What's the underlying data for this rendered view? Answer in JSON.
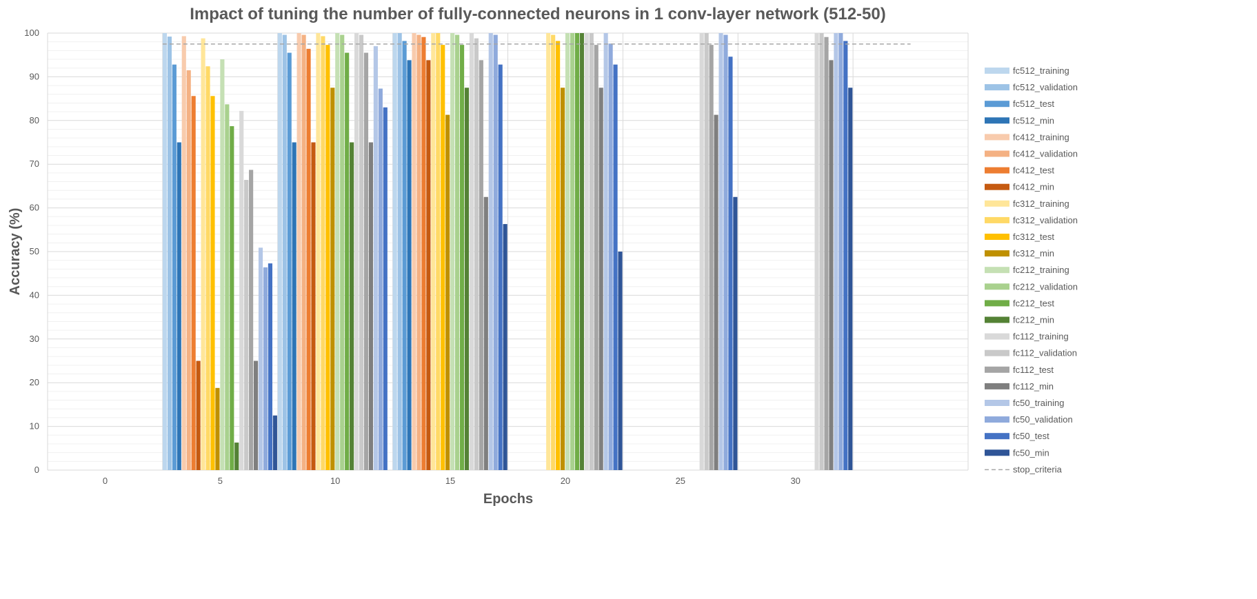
{
  "chart_data": {
    "type": "bar",
    "title": "Impact of tuning the number of fully-connected neurons in 1 conv-layer network (512-50)",
    "xlabel": "Epochs",
    "ylabel": "Accuracy (%)",
    "categories": [
      "0",
      "5",
      "10",
      "15",
      "20",
      "25",
      "30"
    ],
    "ylim": [
      0,
      100
    ],
    "yticks": [
      0,
      10,
      20,
      30,
      40,
      50,
      60,
      70,
      80,
      90,
      100
    ],
    "grid": true,
    "legend_position": "right",
    "series": [
      {
        "name": "fc512_training",
        "color": "#bdd7ee",
        "values": [
          null,
          100,
          100,
          100,
          null,
          null,
          null
        ]
      },
      {
        "name": "fc512_validation",
        "color": "#9dc3e6",
        "values": [
          null,
          99.2,
          99.6,
          100,
          null,
          null,
          null
        ]
      },
      {
        "name": "fc512_test",
        "color": "#5b9bd5",
        "values": [
          null,
          92.8,
          95.5,
          98.2,
          null,
          null,
          null
        ]
      },
      {
        "name": "fc512_min",
        "color": "#2e75b6",
        "values": [
          null,
          75,
          75,
          93.8,
          null,
          null,
          null
        ]
      },
      {
        "name": "fc412_training",
        "color": "#f8cbad",
        "values": [
          null,
          99.3,
          100,
          100,
          null,
          null,
          null
        ]
      },
      {
        "name": "fc412_validation",
        "color": "#f4b183",
        "values": [
          null,
          91.5,
          99.6,
          99.6,
          null,
          null,
          null
        ]
      },
      {
        "name": "fc412_test",
        "color": "#ed7d31",
        "values": [
          null,
          85.6,
          96.4,
          99.1,
          null,
          null,
          null
        ]
      },
      {
        "name": "fc412_min",
        "color": "#c55a11",
        "values": [
          null,
          25,
          75,
          93.8,
          null,
          null,
          null
        ]
      },
      {
        "name": "fc312_training",
        "color": "#ffe699",
        "values": [
          null,
          98.8,
          100,
          100,
          100,
          null,
          null
        ]
      },
      {
        "name": "fc312_validation",
        "color": "#ffd966",
        "values": [
          null,
          92.4,
          99.3,
          100,
          99.6,
          null,
          null
        ]
      },
      {
        "name": "fc312_test",
        "color": "#ffc000",
        "values": [
          null,
          85.6,
          97.3,
          97.3,
          98.2,
          null,
          null
        ]
      },
      {
        "name": "fc312_min",
        "color": "#bf9000",
        "values": [
          null,
          18.8,
          87.5,
          81.3,
          87.5,
          null,
          null
        ]
      },
      {
        "name": "fc212_training",
        "color": "#c5e0b4",
        "values": [
          null,
          94,
          100,
          100,
          100,
          null,
          null
        ]
      },
      {
        "name": "fc212_validation",
        "color": "#a9d18e",
        "values": [
          null,
          83.7,
          99.6,
          99.6,
          100,
          null,
          null
        ]
      },
      {
        "name": "fc212_test",
        "color": "#70ad47",
        "values": [
          null,
          78.7,
          95.5,
          97.3,
          100,
          null,
          null
        ]
      },
      {
        "name": "fc212_min",
        "color": "#548235",
        "values": [
          null,
          6.3,
          75,
          87.5,
          100,
          null,
          null
        ]
      },
      {
        "name": "fc112_training",
        "color": "#d9d9d9",
        "values": [
          null,
          82.2,
          100,
          100,
          100,
          100,
          100
        ]
      },
      {
        "name": "fc112_validation",
        "color": "#c9c9c9",
        "values": [
          null,
          66.4,
          99.6,
          98.8,
          100,
          100,
          100
        ]
      },
      {
        "name": "fc112_test",
        "color": "#a5a5a5",
        "values": [
          null,
          68.7,
          95.5,
          93.8,
          97.3,
          97.3,
          99.1
        ]
      },
      {
        "name": "fc112_min",
        "color": "#7f7f7f",
        "values": [
          null,
          25,
          75,
          62.5,
          87.5,
          81.3,
          93.8
        ]
      },
      {
        "name": "fc50_training",
        "color": "#b4c7e7",
        "values": [
          null,
          50.9,
          97,
          100,
          100,
          100,
          100
        ]
      },
      {
        "name": "fc50_validation",
        "color": "#8faadc",
        "values": [
          null,
          46.4,
          87.3,
          99.6,
          97.6,
          99.6,
          100
        ]
      },
      {
        "name": "fc50_test",
        "color": "#4472c4",
        "values": [
          null,
          47.3,
          83,
          92.8,
          92.8,
          94.6,
          98.2
        ]
      },
      {
        "name": "fc50_min",
        "color": "#2f5597",
        "values": [
          null,
          12.5,
          null,
          56.3,
          50,
          62.5,
          87.5
        ]
      }
    ],
    "reference_line": {
      "name": "stop_criteria",
      "value": 97.5,
      "color": "#a6a6a6",
      "style": "dashed"
    }
  }
}
